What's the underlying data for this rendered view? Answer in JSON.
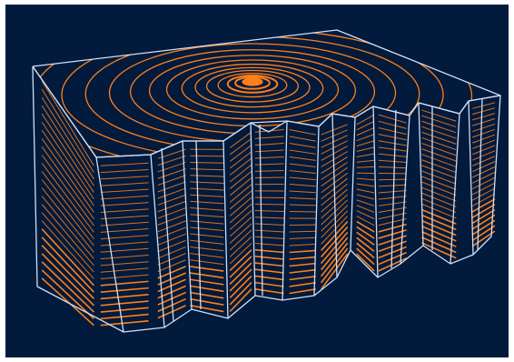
{
  "scene": {
    "name": "3d-wireframe-block-with-orange-contours",
    "colors": {
      "background": "#021a3b",
      "wireframe": "#cfe0f5",
      "contour": "#ff7f1a",
      "contour_dense": "#ff8c1f"
    }
  }
}
